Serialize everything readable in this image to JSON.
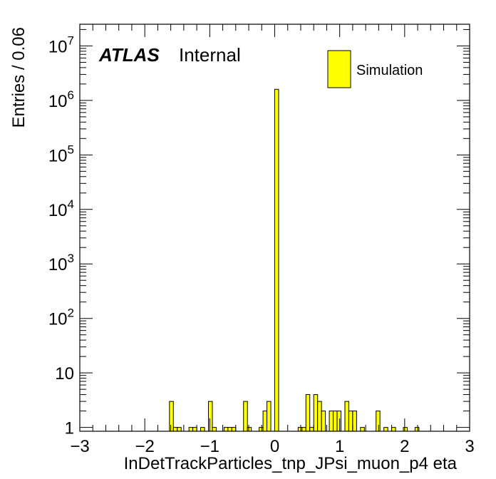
{
  "chart_data": {
    "type": "bar",
    "title": "",
    "atlas_label": "ATLAS",
    "atlas_status": "Internal",
    "xlabel": "InDetTrackParticles_tnp_JPsi_muon_p4 eta",
    "ylabel": "Entries / 0.06",
    "xlim": [
      -3,
      3
    ],
    "ylim": [
      0.85,
      25000000
    ],
    "yscale": "log",
    "grid": false,
    "legend_position": "top-right",
    "bin_width": 0.06,
    "x_ticks": [
      {
        "value": -3,
        "label": "−3"
      },
      {
        "value": -2,
        "label": "−2"
      },
      {
        "value": -1,
        "label": "−1"
      },
      {
        "value": 0,
        "label": "0"
      },
      {
        "value": 1,
        "label": "1"
      },
      {
        "value": 2,
        "label": "2"
      },
      {
        "value": 3,
        "label": "3"
      }
    ],
    "y_ticks": [
      {
        "value": 1,
        "base": "1",
        "exp": ""
      },
      {
        "value": 10,
        "base": "10",
        "exp": ""
      },
      {
        "value": 100,
        "base": "10",
        "exp": "2"
      },
      {
        "value": 1000,
        "base": "10",
        "exp": "3"
      },
      {
        "value": 10000,
        "base": "10",
        "exp": "4"
      },
      {
        "value": 100000,
        "base": "10",
        "exp": "5"
      },
      {
        "value": 1000000,
        "base": "10",
        "exp": "6"
      },
      {
        "value": 10000000,
        "base": "10",
        "exp": "7"
      }
    ],
    "series": [
      {
        "name": "Simulation",
        "color": "#ffff00",
        "bins": [
          {
            "x0": -1.62,
            "x1": -1.56,
            "value": 3
          },
          {
            "x0": -1.56,
            "x1": -1.5,
            "value": 1
          },
          {
            "x0": -1.5,
            "x1": -1.44,
            "value": 1
          },
          {
            "x0": -1.32,
            "x1": -1.26,
            "value": 1
          },
          {
            "x0": -1.26,
            "x1": -1.2,
            "value": 1
          },
          {
            "x0": -1.14,
            "x1": -1.08,
            "value": 1
          },
          {
            "x0": -1.02,
            "x1": -0.96,
            "value": 3
          },
          {
            "x0": -0.96,
            "x1": -0.9,
            "value": 1
          },
          {
            "x0": -0.78,
            "x1": -0.72,
            "value": 1
          },
          {
            "x0": -0.72,
            "x1": -0.66,
            "value": 1
          },
          {
            "x0": -0.66,
            "x1": -0.6,
            "value": 1
          },
          {
            "x0": -0.48,
            "x1": -0.42,
            "value": 3
          },
          {
            "x0": -0.42,
            "x1": -0.36,
            "value": 1
          },
          {
            "x0": -0.24,
            "x1": -0.18,
            "value": 1
          },
          {
            "x0": -0.18,
            "x1": -0.12,
            "value": 2
          },
          {
            "x0": -0.12,
            "x1": -0.06,
            "value": 3
          },
          {
            "x0": 0.0,
            "x1": 0.06,
            "value": 1600000
          },
          {
            "x0": 0.36,
            "x1": 0.42,
            "value": 1
          },
          {
            "x0": 0.42,
            "x1": 0.48,
            "value": 1
          },
          {
            "x0": 0.48,
            "x1": 0.54,
            "value": 4
          },
          {
            "x0": 0.54,
            "x1": 0.6,
            "value": 1
          },
          {
            "x0": 0.6,
            "x1": 0.66,
            "value": 4
          },
          {
            "x0": 0.66,
            "x1": 0.72,
            "value": 3
          },
          {
            "x0": 0.72,
            "x1": 0.78,
            "value": 2
          },
          {
            "x0": 0.84,
            "x1": 0.9,
            "value": 2
          },
          {
            "x0": 0.9,
            "x1": 0.96,
            "value": 2
          },
          {
            "x0": 0.96,
            "x1": 1.02,
            "value": 2
          },
          {
            "x0": 1.08,
            "x1": 1.14,
            "value": 3
          },
          {
            "x0": 1.14,
            "x1": 1.2,
            "value": 2
          },
          {
            "x0": 1.2,
            "x1": 1.26,
            "value": 2
          },
          {
            "x0": 1.32,
            "x1": 1.38,
            "value": 1
          },
          {
            "x0": 1.56,
            "x1": 1.62,
            "value": 2
          },
          {
            "x0": 1.68,
            "x1": 1.74,
            "value": 1
          },
          {
            "x0": 1.8,
            "x1": 1.86,
            "value": 1
          },
          {
            "x0": 1.98,
            "x1": 2.04,
            "value": 1
          },
          {
            "x0": 2.16,
            "x1": 2.22,
            "value": 1
          }
        ]
      }
    ]
  }
}
